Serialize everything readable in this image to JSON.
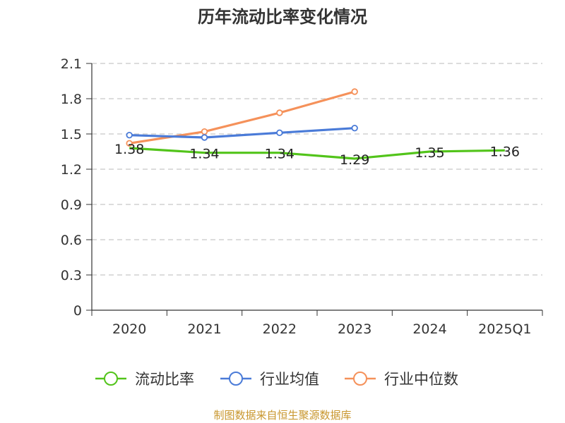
{
  "chart_data": {
    "type": "line",
    "title": "历年流动比率变化情况",
    "categories": [
      "2020",
      "2021",
      "2022",
      "2023",
      "2024",
      "2025Q1"
    ],
    "ylim": [
      0,
      2.1
    ],
    "yticks": [
      "0",
      "0.3",
      "0.6",
      "0.9",
      "1.2",
      "1.5",
      "1.8",
      "2.1"
    ],
    "grid": true,
    "legend_position": "bottom",
    "series": [
      {
        "name": "流动比率",
        "color": "#52c41a",
        "values": [
          1.38,
          1.34,
          1.34,
          1.29,
          1.35,
          1.36
        ],
        "labels": [
          "1.38",
          "1.34",
          "1.34",
          "1.29",
          "1.35",
          "1.36"
        ],
        "show_points": false
      },
      {
        "name": "行业均值",
        "color": "#4a7bd8",
        "values": [
          1.49,
          1.47,
          1.51,
          1.55,
          null,
          null
        ],
        "show_points": true
      },
      {
        "name": "行业中位数",
        "color": "#f5915a",
        "values": [
          1.42,
          1.52,
          1.68,
          1.86,
          null,
          null
        ],
        "show_points": true
      }
    ]
  },
  "source_text": "制图数据来自恒生聚源数据库",
  "source_color": "#c8962d"
}
